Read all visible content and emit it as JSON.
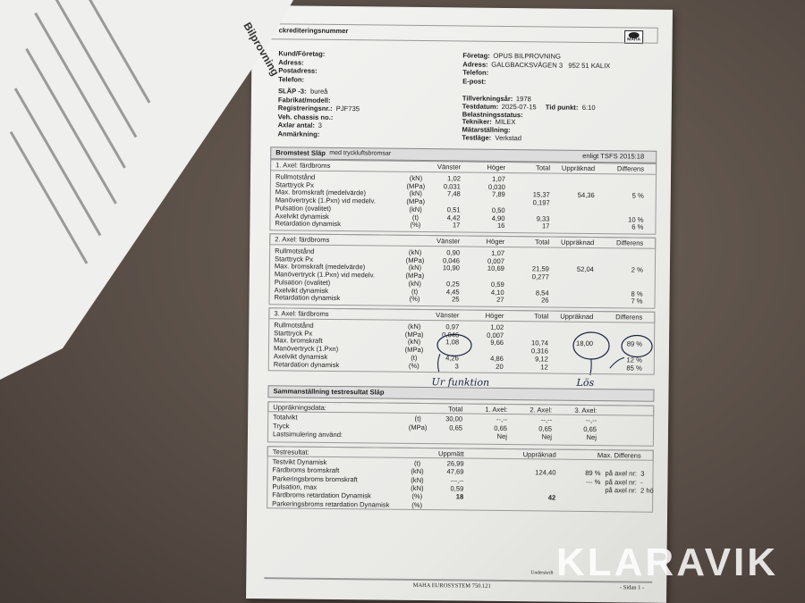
{
  "header": {
    "accreditation": "ckrediteringsnummer",
    "logo": "MAHA"
  },
  "customer": [
    {
      "label": "Kund/Företag:"
    },
    {
      "label": "Adress:"
    },
    {
      "label": "Postadress:"
    },
    {
      "label": "Telefon:"
    }
  ],
  "company": [
    {
      "label": "Företag:",
      "value": "OPUS BILPROVNING"
    },
    {
      "label": "Adress:",
      "value": "GALGBACKSVÄGEN 3   952 51 KALIX"
    },
    {
      "label": "Telefon:"
    },
    {
      "label": "E-post:"
    }
  ],
  "vehicle": [
    {
      "label": "SLÄP -3:",
      "value": "bureå"
    },
    {
      "label": "Fabrikat/modell:"
    },
    {
      "label": "Registreringsnr.:",
      "value": "PJF735"
    },
    {
      "label": "Veh. chassis no.:"
    },
    {
      "label": "Axlar antal:",
      "value": "3"
    },
    {
      "label": "Anmärkning:"
    }
  ],
  "test_info": [
    {
      "label": "Tillverkningsår:",
      "value": "1978"
    },
    {
      "label": "Testdatum:",
      "value": "2025-07-15",
      "label2": "Tid punkt:",
      "value2": "6:10"
    },
    {
      "label": "Belastningsstatus:"
    },
    {
      "label": "Tekniker:",
      "value": "MILEX"
    },
    {
      "label": "Mätarställning:"
    },
    {
      "label": "Testläge:",
      "value": "Verkstad"
    }
  ],
  "brake_test": {
    "title": "Bromstest Släp",
    "subtitle": "med tryckluftsbromsar",
    "standard": "enligt TSFS 2015:18",
    "columns": {
      "left": "Vänster",
      "right": "Höger",
      "total": "Total",
      "calc": "Uppräknad",
      "diff": "Differens"
    },
    "axles": [
      {
        "title": "1. Axel: färdbroms",
        "rows": [
          {
            "label": "Rullmotstånd",
            "unit": "(kN)",
            "left": "1,02",
            "right": "1,07"
          },
          {
            "label": "Starttryck Px",
            "unit": "(MPa)",
            "left": "0,031",
            "right": "0,030"
          },
          {
            "label": "Max. bromskraft (medelvärde)",
            "unit": "(kN)",
            "left": "7,48",
            "right": "7,89",
            "total": "15,37",
            "calc": "54,36",
            "diff": "5 %"
          },
          {
            "label": "Manövertryck (1.Pxn) vid medelv.",
            "unit": "(MPa)",
            "total": "0,197"
          },
          {
            "label": "Pulsation (ovalitet)",
            "unit": "(kN)",
            "left": "0,51",
            "right": "0,50"
          },
          {
            "label": "Axelvikt dynamisk",
            "unit": "(t)",
            "left": "4,42",
            "right": "4,90",
            "total": "9,33",
            "diff": "10 %"
          },
          {
            "label": "Retardation dynamisk",
            "unit": "(%)",
            "left": "17",
            "right": "16",
            "total": "17",
            "diff": "6 %"
          }
        ]
      },
      {
        "title": "2. Axel: färdbroms",
        "rows": [
          {
            "label": "Rullmotstånd",
            "unit": "(kN)",
            "left": "0,90",
            "right": "1,07"
          },
          {
            "label": "Starttryck Px",
            "unit": "(MPa)",
            "left": "0,046",
            "right": "0,007"
          },
          {
            "label": "Max. bromskraft (medelvärde)",
            "unit": "(kN)",
            "left": "10,90",
            "right": "10,69",
            "total": "21,59",
            "calc": "52,04",
            "diff": "2 %"
          },
          {
            "label": "Manövertryck (1.Pxn) vid medelv.",
            "unit": "(MPa)",
            "total": "0,277"
          },
          {
            "label": "Pulsation (ovalitet)",
            "unit": "(kN)",
            "left": "0,25",
            "right": "0,59"
          },
          {
            "label": "Axelvikt dynamisk",
            "unit": "(t)",
            "left": "4,45",
            "right": "4,10",
            "total": "8,54",
            "diff": "8 %"
          },
          {
            "label": "Retardation dynamisk",
            "unit": "(%)",
            "left": "25",
            "right": "27",
            "total": "26",
            "diff": "7 %"
          }
        ]
      },
      {
        "title": "3. Axel: färdbroms",
        "rows": [
          {
            "label": "Rullmotstånd",
            "unit": "(kN)",
            "left": "0,97",
            "right": "1,02"
          },
          {
            "label": "Starttryck Px",
            "unit": "(MPa)",
            "left": "0,046",
            "right": "0,007"
          },
          {
            "label": "Max. bromskraft",
            "unit": "(kN)",
            "left": "1,08",
            "right": "9,66",
            "total": "10,74",
            "calc": "18,00",
            "diff": "89 %"
          },
          {
            "label": "Manövertryck (1.Pxn)",
            "unit": "(MPa)",
            "total": "0,316"
          },
          {
            "label": "Axelvikt dynamisk",
            "unit": "(t)",
            "left": "4,26",
            "right": "4,86",
            "total": "9,12",
            "diff": "12 %"
          },
          {
            "label": "Retardation dynamisk",
            "unit": "(%)",
            "left": "3",
            "right": "20",
            "total": "12",
            "diff": "85 %"
          }
        ]
      }
    ]
  },
  "handwriting": [
    "Ur funktion",
    "Lös"
  ],
  "summary": {
    "title": "Sammanställning testresultat Släp",
    "calc_data": {
      "title": "Uppräkningsdata:",
      "columns": {
        "total": "Total",
        "a1": "1. Axel:",
        "a2": "2. Axel:",
        "a3": "3. Axel:"
      },
      "rows": [
        {
          "label": "Totalvikt",
          "unit": "(t)",
          "total": "30,00",
          "a1": "--,--",
          "a2": "--,--",
          "a3": "--,--"
        },
        {
          "label": "Tryck",
          "unit": "(MPa)",
          "total": "0,65",
          "a1": "0,65",
          "a2": "0,65",
          "a3": "0,65"
        },
        {
          "label": "Lastsimulering använd:",
          "a1": "Nej",
          "a2": "Nej",
          "a3": "Nej"
        }
      ]
    },
    "results": {
      "title": "Testresultat:",
      "columns": {
        "measured": "Uppmätt",
        "calc": "Uppräknad",
        "diff": "Max. Differens"
      },
      "rows": [
        {
          "label": "Testvikt Dynamisk",
          "unit": "(t)",
          "measured": "26,99"
        },
        {
          "label": "Färdbroms bromskraft",
          "unit": "(kN)",
          "measured": "47,69",
          "calc": "124,40",
          "diff": "89 %",
          "axle": "på axel nr:  3"
        },
        {
          "label": "Parkeringsbroms bromskraft",
          "unit": "(kN)",
          "measured": "---,--",
          "diff": "--- %",
          "axle": "på axel nr:  -"
        },
        {
          "label": "Pulsation, max",
          "unit": "(kN)",
          "measured": "0,59",
          "axle": "på axel nr:  2 hö"
        },
        {
          "label": "Färdbroms retardation Dynamisk",
          "unit": "(%)",
          "measured": "18",
          "calc": "42"
        },
        {
          "label": "Parkeringsbroms retardation Dynamisk",
          "unit": "(%)"
        }
      ]
    }
  },
  "footer": {
    "signature": "Underskrift",
    "system": "MAHA EUROSYSTEM 750.121",
    "page": "- Sidan 1 -"
  },
  "other_paper": {
    "title": "Bilprovning"
  },
  "watermark": "KLARAVIK"
}
